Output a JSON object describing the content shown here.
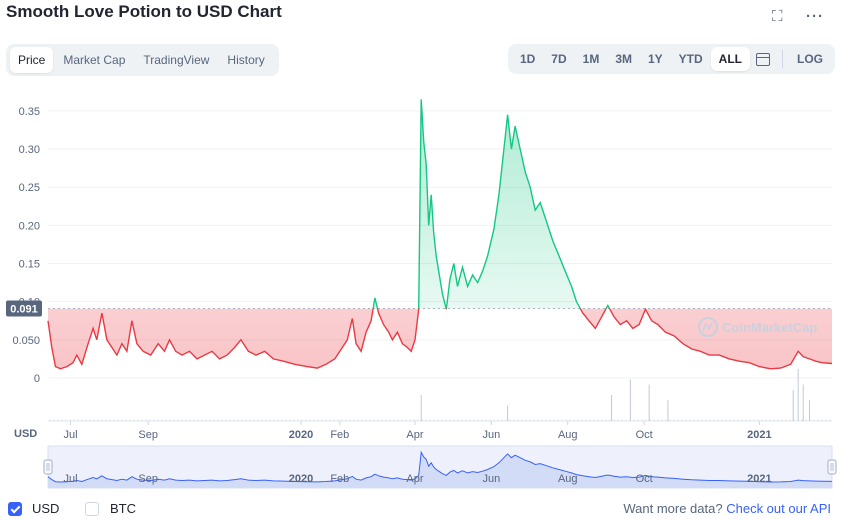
{
  "header": {
    "title": "Smooth Love Potion to USD Chart"
  },
  "tabs": [
    "Price",
    "Market Cap",
    "TradingView",
    "History"
  ],
  "ranges": [
    "1D",
    "7D",
    "1M",
    "3M",
    "1Y",
    "YTD",
    "ALL"
  ],
  "log_label": "LOG",
  "currency_label": "USD",
  "current_price": "0.091",
  "watermark": "CoinMarketCap",
  "footer": {
    "usd": "USD",
    "btc": "BTC",
    "want": "Want more data?",
    "link": "Check out our API"
  },
  "colors": {
    "up": "#16c784",
    "down": "#ea3943",
    "accent": "#3861fb",
    "axis": "#58667e"
  },
  "chart_data": {
    "type": "line",
    "title": "Smooth Love Potion to USD Chart",
    "ylabel": "",
    "ylim": [
      0,
      0.38
    ],
    "y_ticks": [
      "0",
      "0.050",
      "0.10",
      "0.15",
      "0.20",
      "0.25",
      "0.30",
      "0.35"
    ],
    "x_ticks": [
      "Jul",
      "Sep",
      "2020",
      "Feb",
      "Apr",
      "Jun",
      "Aug",
      "Oct",
      "2021"
    ],
    "x_range": [
      "2019-06-13",
      "2021-02-28"
    ],
    "baseline": 0.091,
    "series": [
      {
        "values": [
          [
            "2019-06-13",
            0.075
          ],
          [
            "2019-06-16",
            0.04
          ],
          [
            "2019-06-19",
            0.015
          ],
          [
            "2019-06-23",
            0.012
          ],
          [
            "2019-06-28",
            0.015
          ],
          [
            "2019-07-03",
            0.02
          ],
          [
            "2019-07-06",
            0.03
          ],
          [
            "2019-07-10",
            0.018
          ],
          [
            "2019-07-15",
            0.045
          ],
          [
            "2019-07-19",
            0.065
          ],
          [
            "2019-07-22",
            0.05
          ],
          [
            "2019-07-26",
            0.085
          ],
          [
            "2019-07-30",
            0.05
          ],
          [
            "2019-08-03",
            0.04
          ],
          [
            "2019-08-07",
            0.03
          ],
          [
            "2019-08-11",
            0.045
          ],
          [
            "2019-08-15",
            0.035
          ],
          [
            "2019-08-19",
            0.075
          ],
          [
            "2019-08-23",
            0.045
          ],
          [
            "2019-08-28",
            0.035
          ],
          [
            "2019-09-03",
            0.03
          ],
          [
            "2019-09-09",
            0.045
          ],
          [
            "2019-09-14",
            0.035
          ],
          [
            "2019-09-18",
            0.05
          ],
          [
            "2019-09-23",
            0.035
          ],
          [
            "2019-09-28",
            0.03
          ],
          [
            "2019-10-04",
            0.035
          ],
          [
            "2019-10-10",
            0.025
          ],
          [
            "2019-10-16",
            0.03
          ],
          [
            "2019-10-22",
            0.035
          ],
          [
            "2019-10-28",
            0.025
          ],
          [
            "2019-11-03",
            0.03
          ],
          [
            "2019-11-09",
            0.04
          ],
          [
            "2019-11-14",
            0.05
          ],
          [
            "2019-11-20",
            0.035
          ],
          [
            "2019-11-26",
            0.03
          ],
          [
            "2019-12-03",
            0.035
          ],
          [
            "2019-12-10",
            0.025
          ],
          [
            "2019-12-18",
            0.022
          ],
          [
            "2019-12-27",
            0.018
          ],
          [
            "2020-01-06",
            0.015
          ],
          [
            "2020-01-14",
            0.013
          ],
          [
            "2020-01-21",
            0.018
          ],
          [
            "2020-01-28",
            0.025
          ],
          [
            "2020-02-03",
            0.04
          ],
          [
            "2020-02-07",
            0.05
          ],
          [
            "2020-02-11",
            0.078
          ],
          [
            "2020-02-14",
            0.045
          ],
          [
            "2020-02-18",
            0.035
          ],
          [
            "2020-02-22",
            0.06
          ],
          [
            "2020-02-26",
            0.075
          ],
          [
            "2020-02-29",
            0.105
          ],
          [
            "2020-03-03",
            0.085
          ],
          [
            "2020-03-07",
            0.07
          ],
          [
            "2020-03-11",
            0.06
          ],
          [
            "2020-03-14",
            0.05
          ],
          [
            "2020-03-18",
            0.06
          ],
          [
            "2020-03-22",
            0.045
          ],
          [
            "2020-03-26",
            0.04
          ],
          [
            "2020-03-29",
            0.035
          ],
          [
            "2020-04-01",
            0.05
          ],
          [
            "2020-04-04",
            0.09
          ],
          [
            "2020-04-06",
            0.365
          ],
          [
            "2020-04-08",
            0.31
          ],
          [
            "2020-04-10",
            0.28
          ],
          [
            "2020-04-12",
            0.2
          ],
          [
            "2020-04-14",
            0.24
          ],
          [
            "2020-04-16",
            0.19
          ],
          [
            "2020-04-18",
            0.16
          ],
          [
            "2020-04-20",
            0.14
          ],
          [
            "2020-04-23",
            0.11
          ],
          [
            "2020-04-26",
            0.09
          ],
          [
            "2020-04-29",
            0.13
          ],
          [
            "2020-05-02",
            0.15
          ],
          [
            "2020-05-05",
            0.12
          ],
          [
            "2020-05-09",
            0.145
          ],
          [
            "2020-05-13",
            0.12
          ],
          [
            "2020-05-17",
            0.135
          ],
          [
            "2020-05-21",
            0.125
          ],
          [
            "2020-05-25",
            0.14
          ],
          [
            "2020-05-29",
            0.16
          ],
          [
            "2020-06-03",
            0.195
          ],
          [
            "2020-06-07",
            0.24
          ],
          [
            "2020-06-11",
            0.3
          ],
          [
            "2020-06-14",
            0.345
          ],
          [
            "2020-06-17",
            0.3
          ],
          [
            "2020-06-20",
            0.33
          ],
          [
            "2020-06-24",
            0.3
          ],
          [
            "2020-06-28",
            0.27
          ],
          [
            "2020-07-02",
            0.25
          ],
          [
            "2020-07-06",
            0.22
          ],
          [
            "2020-07-10",
            0.23
          ],
          [
            "2020-07-15",
            0.205
          ],
          [
            "2020-07-20",
            0.18
          ],
          [
            "2020-07-25",
            0.16
          ],
          [
            "2020-07-30",
            0.14
          ],
          [
            "2020-08-04",
            0.12
          ],
          [
            "2020-08-08",
            0.1
          ],
          [
            "2020-08-13",
            0.085
          ],
          [
            "2020-08-18",
            0.075
          ],
          [
            "2020-08-23",
            0.065
          ],
          [
            "2020-08-28",
            0.08
          ],
          [
            "2020-09-02",
            0.095
          ],
          [
            "2020-09-07",
            0.08
          ],
          [
            "2020-09-12",
            0.07
          ],
          [
            "2020-09-17",
            0.075
          ],
          [
            "2020-09-22",
            0.065
          ],
          [
            "2020-09-27",
            0.07
          ],
          [
            "2020-10-02",
            0.09
          ],
          [
            "2020-10-07",
            0.075
          ],
          [
            "2020-10-12",
            0.07
          ],
          [
            "2020-10-18",
            0.06
          ],
          [
            "2020-10-25",
            0.055
          ],
          [
            "2020-11-01",
            0.045
          ],
          [
            "2020-11-08",
            0.038
          ],
          [
            "2020-11-15",
            0.035
          ],
          [
            "2020-11-22",
            0.03
          ],
          [
            "2020-11-30",
            0.03
          ],
          [
            "2020-12-08",
            0.025
          ],
          [
            "2020-12-16",
            0.022
          ],
          [
            "2020-12-24",
            0.02
          ],
          [
            "2021-01-01",
            0.015
          ],
          [
            "2021-01-10",
            0.012
          ],
          [
            "2021-01-18",
            0.013
          ],
          [
            "2021-01-26",
            0.018
          ],
          [
            "2021-02-01",
            0.035
          ],
          [
            "2021-02-05",
            0.028
          ],
          [
            "2021-02-10",
            0.025
          ],
          [
            "2021-02-15",
            0.022
          ],
          [
            "2021-02-20",
            0.02
          ],
          [
            "2021-02-28",
            0.019
          ]
        ]
      }
    ],
    "volume_spikes": [
      [
        "2020-04-06",
        0.5
      ],
      [
        "2020-06-14",
        0.3
      ],
      [
        "2020-09-05",
        0.5
      ],
      [
        "2020-09-20",
        0.8
      ],
      [
        "2020-10-05",
        0.7
      ],
      [
        "2020-10-20",
        0.4
      ],
      [
        "2021-01-28",
        0.6
      ],
      [
        "2021-02-01",
        1.0
      ],
      [
        "2021-02-05",
        0.7
      ],
      [
        "2021-02-10",
        0.4
      ]
    ]
  }
}
